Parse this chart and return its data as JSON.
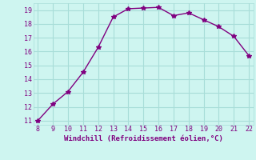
{
  "x": [
    8,
    9,
    10,
    11,
    12,
    13,
    14,
    15,
    16,
    17,
    18,
    19,
    20,
    21,
    22
  ],
  "y": [
    11.0,
    12.2,
    13.1,
    14.5,
    16.3,
    18.5,
    19.1,
    19.15,
    19.2,
    18.6,
    18.8,
    18.3,
    17.8,
    17.1,
    15.7
  ],
  "xlim": [
    7.7,
    22.3
  ],
  "ylim": [
    10.7,
    19.5
  ],
  "xticks": [
    8,
    9,
    10,
    11,
    12,
    13,
    14,
    15,
    16,
    17,
    18,
    19,
    20,
    21,
    22
  ],
  "yticks": [
    11,
    12,
    13,
    14,
    15,
    16,
    17,
    18,
    19
  ],
  "xlabel": "Windchill (Refroidissement éolien,°C)",
  "line_color": "#800080",
  "marker": "*",
  "bg_color": "#cef5f0",
  "grid_color": "#a8ddd8",
  "label_color": "#800080",
  "tick_color": "#800080",
  "marker_size": 4,
  "line_width": 1.0,
  "tick_fontsize": 6.0,
  "xlabel_fontsize": 6.5
}
